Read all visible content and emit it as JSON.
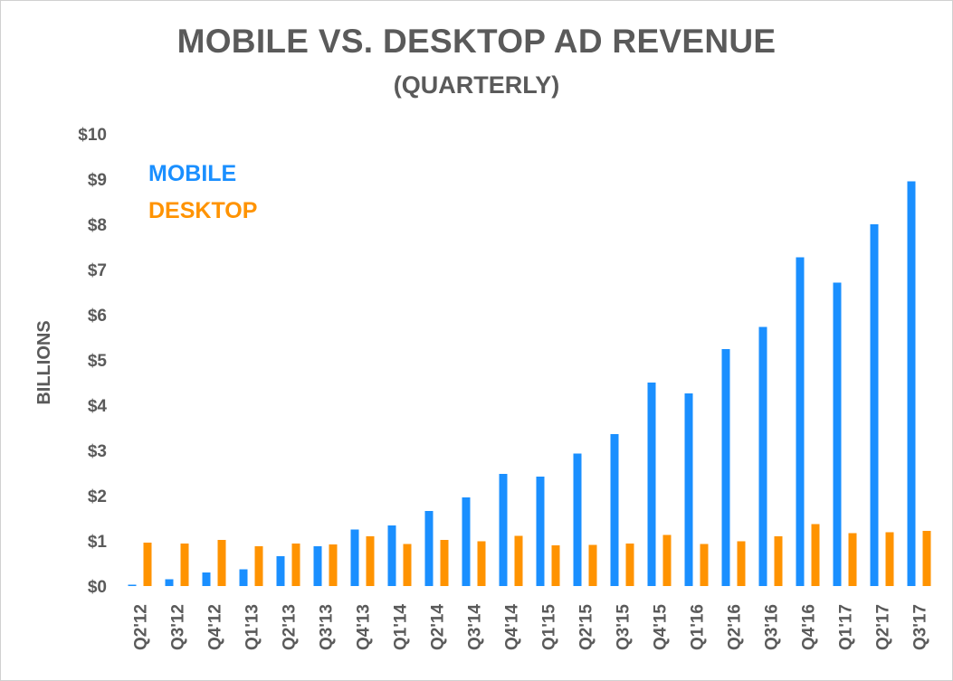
{
  "chart_data": {
    "type": "bar",
    "title": "MOBILE VS. DESKTOP AD REVENUE",
    "subtitle": "(QUARTERLY)",
    "xlabel": "",
    "ylabel": "BILLIONS",
    "ylim": [
      0,
      10
    ],
    "yticks": [
      "$0",
      "$1",
      "$2",
      "$3",
      "$4",
      "$5",
      "$6",
      "$7",
      "$8",
      "$9",
      "$10"
    ],
    "grid": false,
    "legend_position": "top-left",
    "categories": [
      "Q2'12",
      "Q3'12",
      "Q4'12",
      "Q1'13",
      "Q2'13",
      "Q3'13",
      "Q4'13",
      "Q1'14",
      "Q2'14",
      "Q3'14",
      "Q4'14",
      "Q1'15",
      "Q2'15",
      "Q3'15",
      "Q4'15",
      "Q1'16",
      "Q2'16",
      "Q3'16",
      "Q4'16",
      "Q1'17",
      "Q2'17",
      "Q3'17"
    ],
    "series": [
      {
        "name": "MOBILE",
        "color": "#1a8fff",
        "values": [
          0.03,
          0.15,
          0.3,
          0.37,
          0.66,
          0.88,
          1.25,
          1.34,
          1.66,
          1.96,
          2.48,
          2.42,
          2.93,
          3.36,
          4.5,
          4.26,
          5.24,
          5.73,
          7.27,
          6.71,
          8.0,
          8.95
        ]
      },
      {
        "name": "DESKTOP",
        "color": "#ff9300",
        "values": [
          0.96,
          0.94,
          1.02,
          0.88,
          0.94,
          0.92,
          1.1,
          0.93,
          1.02,
          0.99,
          1.11,
          0.9,
          0.91,
          0.94,
          1.13,
          0.93,
          0.99,
          1.1,
          1.37,
          1.17,
          1.19,
          1.22
        ]
      }
    ]
  }
}
